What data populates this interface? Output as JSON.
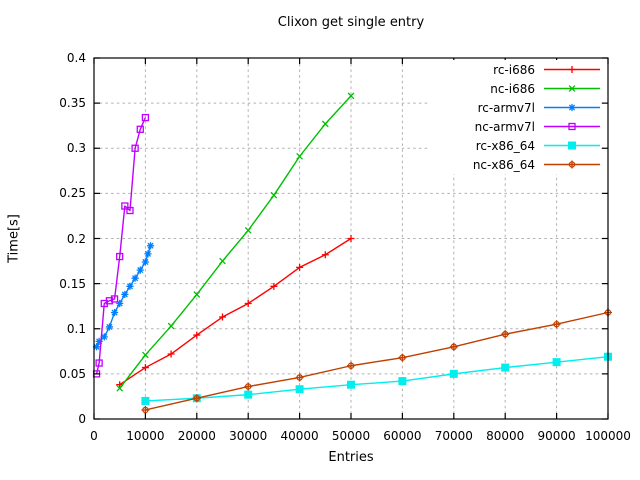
{
  "chart_data": {
    "type": "line",
    "title": "Clixon get single entry",
    "xlabel": "Entries",
    "ylabel": "Time[s]",
    "xlim": [
      0,
      100000
    ],
    "ylim": [
      0,
      0.4
    ],
    "grid": true,
    "legend_position": "top-right-inside-opaque",
    "background": "#ffffff",
    "grid_color": "#b0b0b0",
    "border_color": "#000000",
    "xticks": {
      "values": [
        0,
        10000,
        20000,
        30000,
        40000,
        50000,
        60000,
        70000,
        80000,
        90000,
        100000
      ],
      "labels": [
        "0",
        "10000",
        "20000",
        "30000",
        "40000",
        "50000",
        "60000",
        "70000",
        "80000",
        "90000",
        "100000"
      ]
    },
    "yticks": {
      "values": [
        0,
        0.05,
        0.1,
        0.15,
        0.2,
        0.25,
        0.3,
        0.35,
        0.4
      ],
      "labels": [
        "0",
        "0.05",
        "0.1",
        "0.15",
        "0.2",
        "0.25",
        "0.3",
        "0.35",
        "0.4"
      ]
    },
    "series": [
      {
        "name": "rc-i686",
        "color": "#ff0000",
        "marker": "plus",
        "x": [
          5000,
          10000,
          15000,
          20000,
          25000,
          30000,
          35000,
          40000,
          45000,
          50000
        ],
        "y": [
          0.038,
          0.057,
          0.072,
          0.093,
          0.113,
          0.128,
          0.147,
          0.168,
          0.182,
          0.2
        ]
      },
      {
        "name": "nc-i686",
        "color": "#00c000",
        "marker": "cross",
        "x": [
          5000,
          10000,
          15000,
          20000,
          25000,
          30000,
          35000,
          40000,
          45000,
          50000
        ],
        "y": [
          0.034,
          0.071,
          0.103,
          0.138,
          0.175,
          0.209,
          0.248,
          0.291,
          0.327,
          0.358
        ]
      },
      {
        "name": "rc-armv7l",
        "color": "#0080ff",
        "marker": "asterisk",
        "x": [
          500,
          1000,
          2000,
          3000,
          4000,
          5000,
          6000,
          7000,
          8000,
          9000,
          10000,
          10500,
          11000
        ],
        "y": [
          0.08,
          0.086,
          0.091,
          0.102,
          0.118,
          0.128,
          0.138,
          0.147,
          0.156,
          0.165,
          0.174,
          0.183,
          0.192
        ]
      },
      {
        "name": "nc-armv7l",
        "color": "#c000ff",
        "marker": "square-open",
        "x": [
          500,
          1000,
          2000,
          3000,
          4000,
          5000,
          6000,
          7000,
          8000,
          9000,
          10000
        ],
        "y": [
          0.05,
          0.062,
          0.128,
          0.131,
          0.133,
          0.18,
          0.236,
          0.231,
          0.3,
          0.321,
          0.334
        ]
      },
      {
        "name": "rc-x86_64",
        "color": "#00eeee",
        "marker": "square-filled",
        "x": [
          10000,
          20000,
          30000,
          40000,
          50000,
          60000,
          70000,
          80000,
          90000,
          100000
        ],
        "y": [
          0.02,
          0.023,
          0.027,
          0.033,
          0.038,
          0.042,
          0.05,
          0.057,
          0.063,
          0.069
        ]
      },
      {
        "name": "nc-x86_64",
        "color": "#c04000",
        "marker": "circle-open",
        "x": [
          10000,
          20000,
          30000,
          40000,
          50000,
          60000,
          70000,
          80000,
          90000,
          100000
        ],
        "y": [
          0.01,
          0.023,
          0.036,
          0.046,
          0.059,
          0.068,
          0.08,
          0.094,
          0.105,
          0.118
        ]
      }
    ]
  }
}
